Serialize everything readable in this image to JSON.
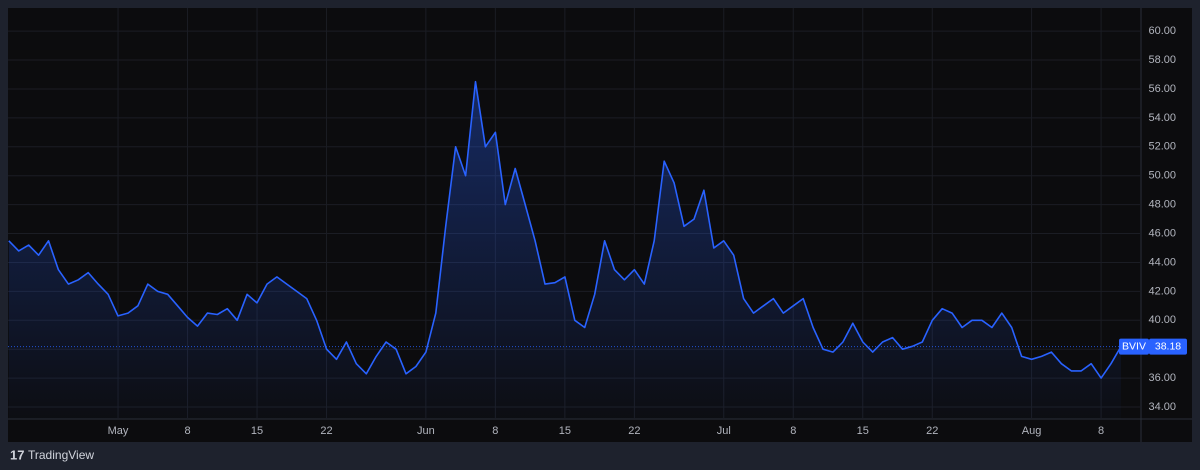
{
  "chart_data": {
    "type": "area",
    "branding": "TradingView",
    "series": [
      {
        "name": "BVIV",
        "color": "#2962ff",
        "values": [
          45.5,
          44.8,
          45.2,
          44.5,
          45.5,
          43.5,
          42.5,
          42.8,
          43.3,
          42.5,
          41.8,
          40.3,
          40.5,
          41.0,
          42.5,
          42.0,
          41.8,
          41.0,
          40.2,
          39.6,
          40.5,
          40.4,
          40.8,
          40.0,
          41.8,
          41.2,
          42.5,
          43.0,
          42.5,
          42.0,
          41.5,
          40.0,
          38.0,
          37.3,
          38.5,
          37.0,
          36.3,
          37.5,
          38.5,
          38.0,
          36.3,
          36.8,
          37.8,
          40.5,
          46.5,
          52.0,
          50.0,
          56.5,
          52.0,
          53.0,
          48.0,
          50.5,
          48.0,
          45.5,
          42.5,
          42.6,
          43.0,
          40.0,
          39.5,
          41.8,
          45.5,
          43.5,
          42.8,
          43.5,
          42.5,
          45.5,
          51.0,
          49.5,
          46.5,
          47.0,
          49.0,
          45.0,
          45.5,
          44.5,
          41.5,
          40.5,
          41.0,
          41.5,
          40.5,
          41.0,
          41.5,
          39.5,
          38.0,
          37.8,
          38.5,
          39.8,
          38.5,
          37.8,
          38.5,
          38.8,
          38.0,
          38.2,
          38.5,
          40.0,
          40.8,
          40.5,
          39.5,
          40.0,
          40.0,
          39.5,
          40.5,
          39.5,
          37.5,
          37.3,
          37.5,
          37.8,
          37.0,
          36.5,
          36.5,
          37.0,
          36.0,
          37.0,
          38.18
        ]
      }
    ],
    "xlim": [
      0,
      114
    ],
    "xticks": [
      {
        "value": 11,
        "label": "May"
      },
      {
        "value": 18,
        "label": "8"
      },
      {
        "value": 25,
        "label": "15"
      },
      {
        "value": 32,
        "label": "22"
      },
      {
        "value": 42,
        "label": "Jun"
      },
      {
        "value": 49,
        "label": "8"
      },
      {
        "value": 56,
        "label": "15"
      },
      {
        "value": 63,
        "label": "22"
      },
      {
        "value": 72,
        "label": "Jul"
      },
      {
        "value": 79,
        "label": "8"
      },
      {
        "value": 86,
        "label": "15"
      },
      {
        "value": 93,
        "label": "22"
      },
      {
        "value": 103,
        "label": "Aug"
      },
      {
        "value": 110,
        "label": "8"
      }
    ],
    "ylim": [
      33.2,
      60.9
    ],
    "yticks": [
      {
        "value": 34,
        "label": "34.00"
      },
      {
        "value": 36,
        "label": "36.00"
      },
      {
        "value": 38,
        "label": "38.00"
      },
      {
        "value": 40,
        "label": "40.00"
      },
      {
        "value": 42,
        "label": "42.00"
      },
      {
        "value": 44,
        "label": "44.00"
      },
      {
        "value": 46,
        "label": "46.00"
      },
      {
        "value": 48,
        "label": "48.00"
      },
      {
        "value": 50,
        "label": "50.00"
      },
      {
        "value": 52,
        "label": "52.00"
      },
      {
        "value": 54,
        "label": "54.00"
      },
      {
        "value": 56,
        "label": "56.00"
      },
      {
        "value": 58,
        "label": "58.00"
      },
      {
        "value": 60,
        "label": "60.00"
      }
    ],
    "grid": true
  }
}
